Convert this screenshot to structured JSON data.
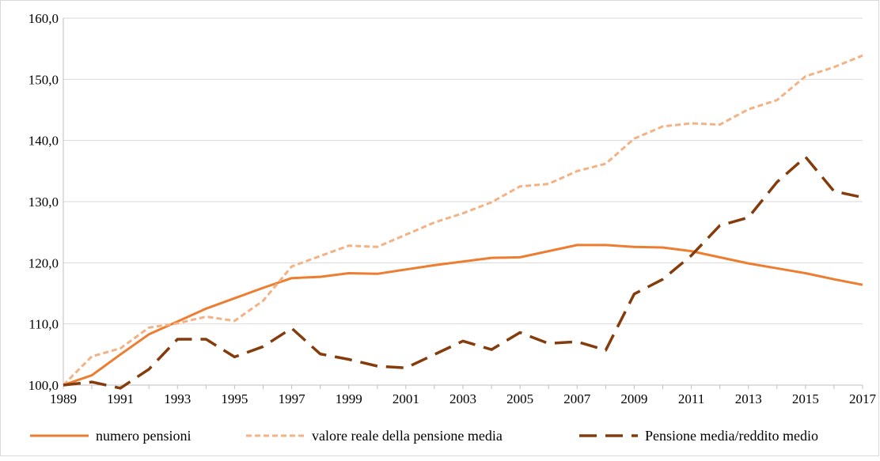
{
  "chart_data": {
    "type": "line",
    "title": "",
    "xlabel": "",
    "ylabel": "",
    "x": [
      1989,
      1990,
      1991,
      1992,
      1993,
      1994,
      1995,
      1996,
      1997,
      1998,
      1999,
      2000,
      2001,
      2002,
      2003,
      2004,
      2005,
      2006,
      2007,
      2008,
      2009,
      2010,
      2011,
      2012,
      2013,
      2014,
      2015,
      2016,
      2017
    ],
    "x_ticks": [
      "1989",
      "1991",
      "1993",
      "1995",
      "1997",
      "1999",
      "2001",
      "2003",
      "2005",
      "2007",
      "2009",
      "2011",
      "2013",
      "2015",
      "2017"
    ],
    "ylim": [
      100,
      160
    ],
    "y_ticks": [
      "100,0",
      "110,0",
      "120,0",
      "130,0",
      "140,0",
      "150,0",
      "160,0"
    ],
    "y_tick_values": [
      100,
      110,
      120,
      130,
      140,
      150,
      160
    ],
    "grid": true,
    "legend_position": "bottom",
    "series": [
      {
        "name": "numero pensioni",
        "color": "#ED7D31",
        "style": "solid",
        "values": [
          100.0,
          101.6,
          105.0,
          108.3,
          110.4,
          112.5,
          114.2,
          115.9,
          117.5,
          117.7,
          118.3,
          118.2,
          118.9,
          119.6,
          120.2,
          120.8,
          120.9,
          121.9,
          122.9,
          122.9,
          122.6,
          122.5,
          121.9,
          120.9,
          119.9,
          119.1,
          118.3,
          117.3,
          116.4
        ]
      },
      {
        "name": "valore reale della pensione media",
        "color": "#F4B183",
        "style": "dotted",
        "values": [
          100.0,
          104.7,
          106.0,
          109.4,
          110.1,
          111.2,
          110.5,
          113.8,
          119.4,
          121.1,
          122.8,
          122.6,
          124.6,
          126.6,
          128.1,
          129.9,
          132.5,
          132.9,
          135.0,
          136.2,
          140.3,
          142.3,
          142.8,
          142.6,
          145.1,
          146.6,
          150.5,
          152.0,
          153.9
        ]
      },
      {
        "name": "Pensione media/reddito medio",
        "color": "#843C0C",
        "style": "dashed",
        "values": [
          100.0,
          100.5,
          99.5,
          102.6,
          107.5,
          107.5,
          104.6,
          106.3,
          109.3,
          105.1,
          104.2,
          103.1,
          102.8,
          105.0,
          107.2,
          105.8,
          108.6,
          106.8,
          107.1,
          105.7,
          114.9,
          117.3,
          121.2,
          126.1,
          127.4,
          133.2,
          137.3,
          131.7,
          130.7
        ]
      }
    ]
  }
}
